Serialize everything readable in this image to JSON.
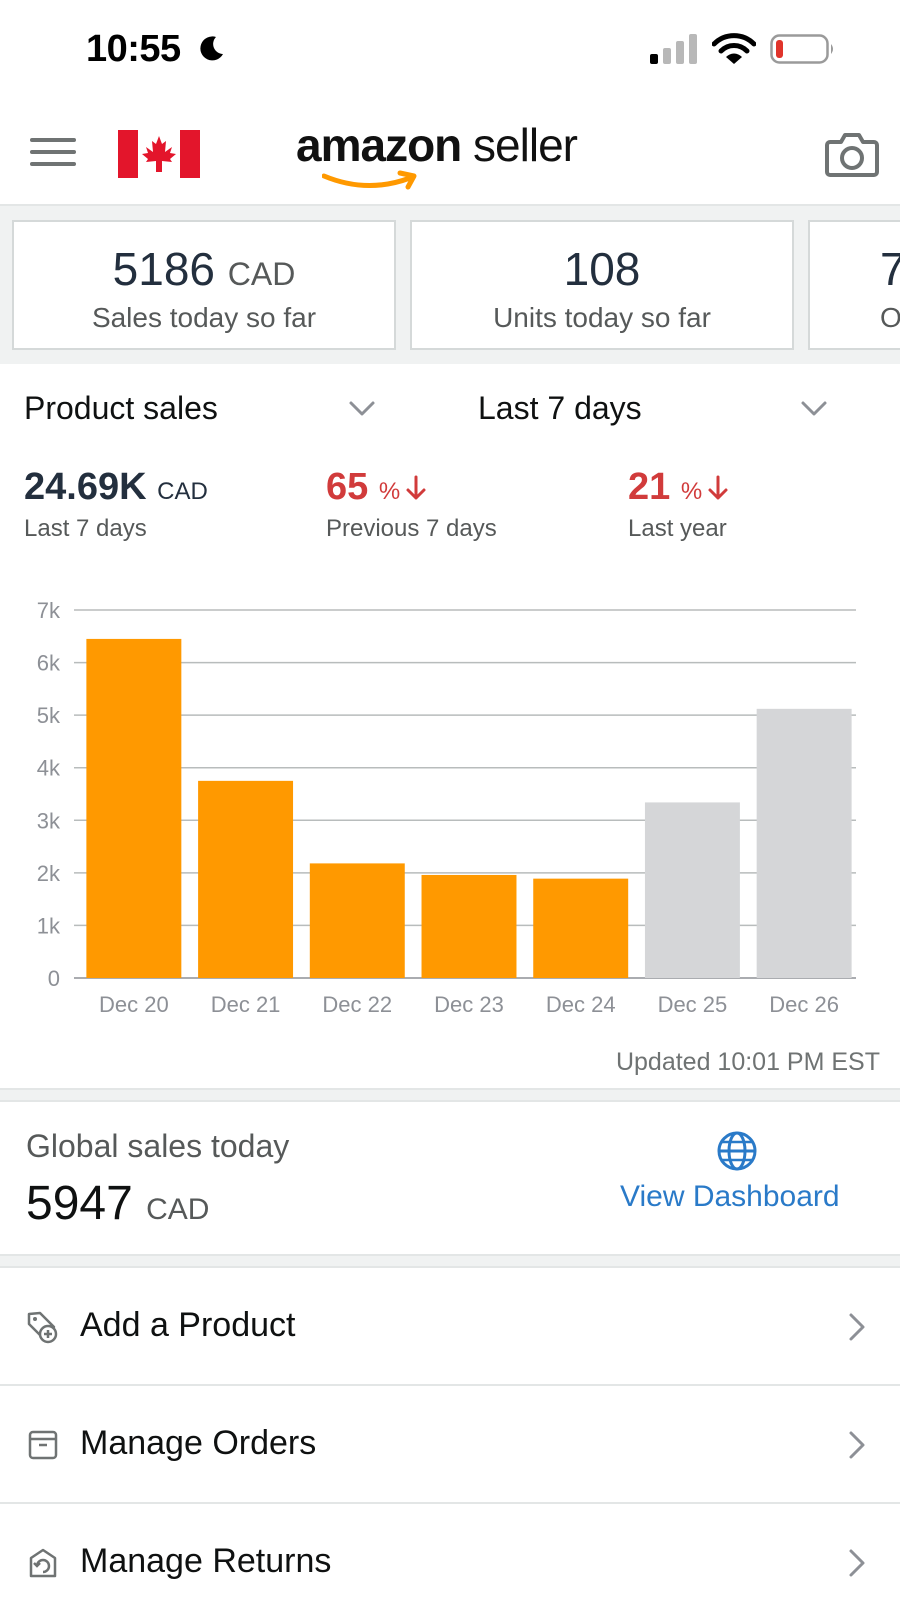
{
  "status_bar": {
    "time": "10:55"
  },
  "header": {
    "logo_brand": "amazon",
    "logo_suffix": " seller"
  },
  "cards": [
    {
      "value": "5186",
      "unit": "CAD",
      "label": "Sales today so far"
    },
    {
      "value": "108",
      "unit": "",
      "label": "Units today so far"
    },
    {
      "value": "7",
      "unit": "",
      "label": "O"
    }
  ],
  "selectors": {
    "metric": "Product sales",
    "period": "Last 7 days"
  },
  "stats": {
    "current": {
      "value": "24.69K",
      "unit": "CAD",
      "label": "Last 7 days"
    },
    "previous": {
      "value": "65",
      "unit": "%",
      "label": "Previous 7 days"
    },
    "last_year": {
      "value": "21",
      "unit": "%",
      "label": "Last year"
    }
  },
  "chart_data": {
    "type": "bar",
    "categories": [
      "Dec 20",
      "Dec 21",
      "Dec 22",
      "Dec 23",
      "Dec 24",
      "Dec 25",
      "Dec 26"
    ],
    "values": [
      6450,
      3750,
      2180,
      1960,
      1890,
      3340,
      5120
    ],
    "bar_colors": [
      "#ff9900",
      "#ff9900",
      "#ff9900",
      "#ff9900",
      "#ff9900",
      "#d5d6d8",
      "#d5d6d8"
    ],
    "y_ticks": [
      "0",
      "1k",
      "2k",
      "3k",
      "4k",
      "5k",
      "6k",
      "7k"
    ],
    "ylim": [
      0,
      7000
    ],
    "grid": true
  },
  "updated": "Updated 10:01 PM EST",
  "global": {
    "title": "Global sales today",
    "value": "5947",
    "unit": "CAD",
    "link": "View Dashboard"
  },
  "menu_rows": [
    {
      "label": "Add a Product",
      "icon": "add-product-icon"
    },
    {
      "label": "Manage Orders",
      "icon": "box-icon"
    },
    {
      "label": "Manage Returns",
      "icon": "returns-icon"
    }
  ],
  "colors": {
    "accent": "#ff9900",
    "negative": "#d13b3b",
    "link": "#2a7ac8",
    "future_bar": "#d5d6d8"
  }
}
